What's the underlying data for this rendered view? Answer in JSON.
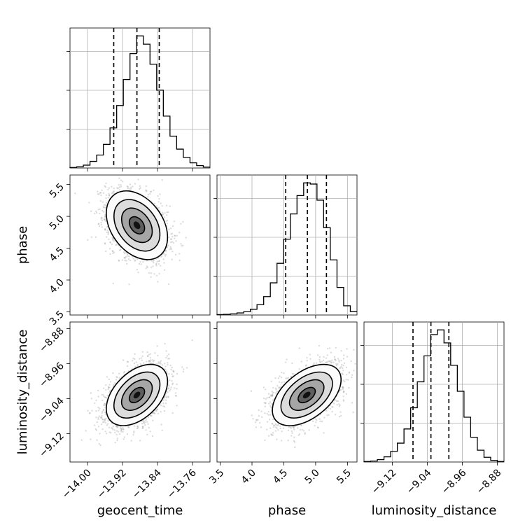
{
  "chart_data": {
    "type": "corner",
    "parameters": [
      "geocent_time",
      "phase",
      "luminosity_distance"
    ],
    "axis_labels": {
      "geocent_time": "geocent_time",
      "phase": "phase",
      "luminosity_distance": "luminosity_distance"
    },
    "ranges": {
      "geocent_time": [
        -14.04,
        -13.72
      ],
      "phase": [
        3.45,
        5.65
      ],
      "luminosity_distance": [
        -9.185,
        -8.865
      ]
    },
    "ticks": {
      "geocent_time": {
        "values": [
          -14.0,
          -13.92,
          -13.84,
          -13.76
        ],
        "labels": [
          "−14.00",
          "−13.92",
          "−13.84",
          "−13.76"
        ]
      },
      "phase_x": {
        "values": [
          3.5,
          4.0,
          4.5,
          5.0,
          5.5
        ],
        "labels": [
          "3.5",
          "4.0",
          "4.5",
          "5.0",
          "5.5"
        ]
      },
      "phase_y": {
        "values": [
          3.5,
          4.0,
          4.5,
          5.0,
          5.5
        ],
        "labels": [
          "3.5",
          "4.0",
          "4.5",
          "5.0",
          "5.5"
        ]
      },
      "luminosity_distance_x": {
        "values": [
          -9.12,
          -9.04,
          -8.96,
          -8.88
        ],
        "labels": [
          "−9.12",
          "−9.04",
          "−8.96",
          "−8.88"
        ]
      },
      "luminosity_distance_y": {
        "values": [
          -9.12,
          -9.04,
          -8.96,
          -8.88
        ],
        "labels": [
          "−9.12",
          "−9.04",
          "−8.96",
          "−8.88"
        ]
      }
    },
    "histograms": {
      "geocent_time": {
        "edges_range": [
          -14.04,
          -13.72
        ],
        "counts": [
          2,
          5,
          12,
          28,
          55,
          100,
          170,
          265,
          375,
          485,
          560,
          525,
          440,
          330,
          220,
          135,
          80,
          45,
          22,
          10,
          4
        ],
        "quantiles": [
          -13.94,
          -13.887,
          -13.836
        ]
      },
      "phase": {
        "edges_range": [
          3.45,
          5.65
        ],
        "counts": [
          2,
          3,
          5,
          9,
          14,
          25,
          45,
          80,
          140,
          225,
          330,
          440,
          520,
          575,
          570,
          500,
          380,
          240,
          120,
          40,
          15
        ],
        "quantiles": [
          4.53,
          4.87,
          5.17
        ]
      },
      "luminosity_distance": {
        "edges_range": [
          -9.185,
          -8.865
        ],
        "counts": [
          2,
          4,
          10,
          22,
          45,
          80,
          140,
          230,
          340,
          450,
          540,
          560,
          505,
          410,
          300,
          190,
          105,
          50,
          20,
          7,
          2
        ],
        "quantiles": [
          -9.073,
          -9.032,
          -8.991
        ]
      }
    },
    "scatter_pairs": [
      {
        "x": "geocent_time",
        "y": "phase",
        "mean": [
          -13.887,
          4.86
        ],
        "std": [
          0.035,
          0.27
        ],
        "correlation": -0.35,
        "samples": 2200
      },
      {
        "x": "geocent_time",
        "y": "luminosity_distance",
        "mean": [
          -13.887,
          -9.032
        ],
        "std": [
          0.035,
          0.035
        ],
        "correlation": 0.45,
        "samples": 2200
      },
      {
        "x": "phase",
        "y": "luminosity_distance",
        "mean": [
          4.86,
          -9.032
        ],
        "std": [
          0.27,
          0.035
        ],
        "correlation": 0.5,
        "samples": 2200
      }
    ],
    "contour_levels_sigma": [
      0.5,
      1.0,
      1.5,
      2.0
    ],
    "grid": true
  }
}
